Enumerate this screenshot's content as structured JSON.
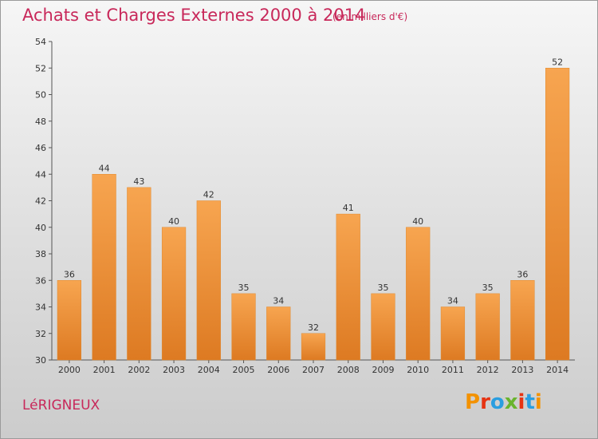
{
  "header": {
    "title": "Achats et Charges Externes 2000 à 2014",
    "subtitle": "(en milliers d'€)"
  },
  "footer": {
    "commune": "LéRIGNEUX",
    "logo_text": "Proxiti",
    "logo_colors": [
      "#f39200",
      "#e63312",
      "#2a9ee0",
      "#69b42d",
      "#e63312",
      "#2a9ee0",
      "#f39200"
    ]
  },
  "colors": {
    "bar_light": "#f7a550",
    "bar_dark": "#dd7a22",
    "title": "#c8285a"
  },
  "chart_data": {
    "type": "bar",
    "title": "Achats et Charges Externes 2000 à 2014",
    "subtitle": "(en milliers d'€)",
    "categories": [
      "2000",
      "2001",
      "2002",
      "2003",
      "2004",
      "2005",
      "2006",
      "2007",
      "2008",
      "2009",
      "2010",
      "2011",
      "2012",
      "2013",
      "2014"
    ],
    "values": [
      36,
      44,
      43,
      40,
      42,
      35,
      34,
      32,
      41,
      35,
      40,
      34,
      35,
      36,
      52
    ],
    "ylim": [
      30,
      54
    ],
    "yticks": [
      30,
      32,
      34,
      36,
      38,
      40,
      42,
      44,
      46,
      48,
      50,
      52,
      54
    ],
    "grid": false,
    "data_labels": true
  }
}
